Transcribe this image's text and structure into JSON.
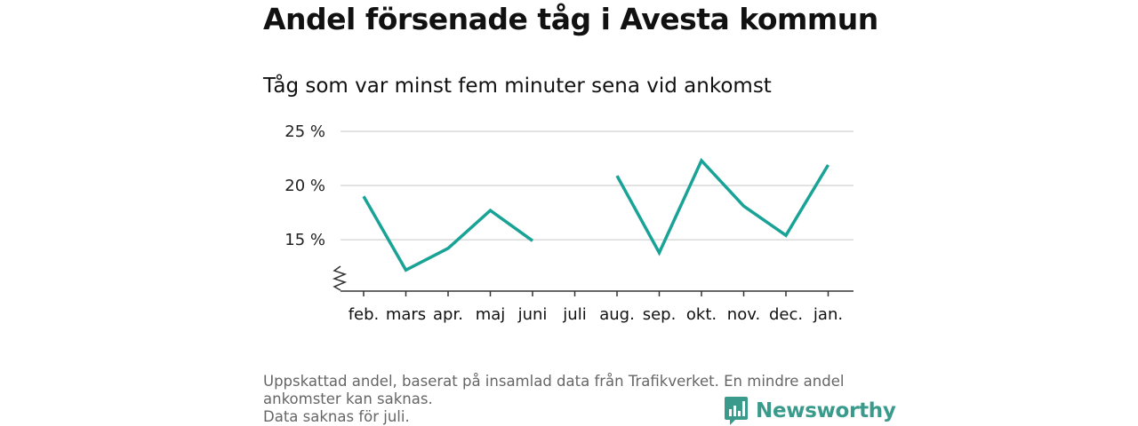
{
  "title": "Andel försenade tåg i Avesta kommun",
  "subtitle": "Tåg som var minst fem minuter sena vid ankomst",
  "footnote": {
    "line1": "Uppskattad andel, baserat på insamlad data från Trafikverket. En mindre andel",
    "line2": "ankomster kan saknas.",
    "line3": "Data saknas för juli."
  },
  "brand": {
    "name": "Newsworthy",
    "color": "#3a9b8c",
    "icon": "bar-chart-speech-icon"
  },
  "chart_data": {
    "type": "line",
    "categories": [
      "feb.",
      "mars",
      "apr.",
      "maj",
      "juni",
      "juli",
      "aug.",
      "sep.",
      "okt.",
      "nov.",
      "dec.",
      "jan."
    ],
    "series": [
      {
        "values": [
          19.0,
          12.2,
          14.2,
          17.7,
          14.9,
          null,
          20.9,
          13.8,
          22.3,
          18.1,
          15.4,
          21.9
        ],
        "color": "#19a396"
      }
    ],
    "yticks": [
      15,
      20,
      25
    ],
    "ytick_labels": [
      "15 %",
      "20 %",
      "25 %"
    ],
    "ylim": [
      10.5,
      25
    ],
    "grid": true,
    "axis_break": true,
    "xlabel": "",
    "ylabel": ""
  }
}
